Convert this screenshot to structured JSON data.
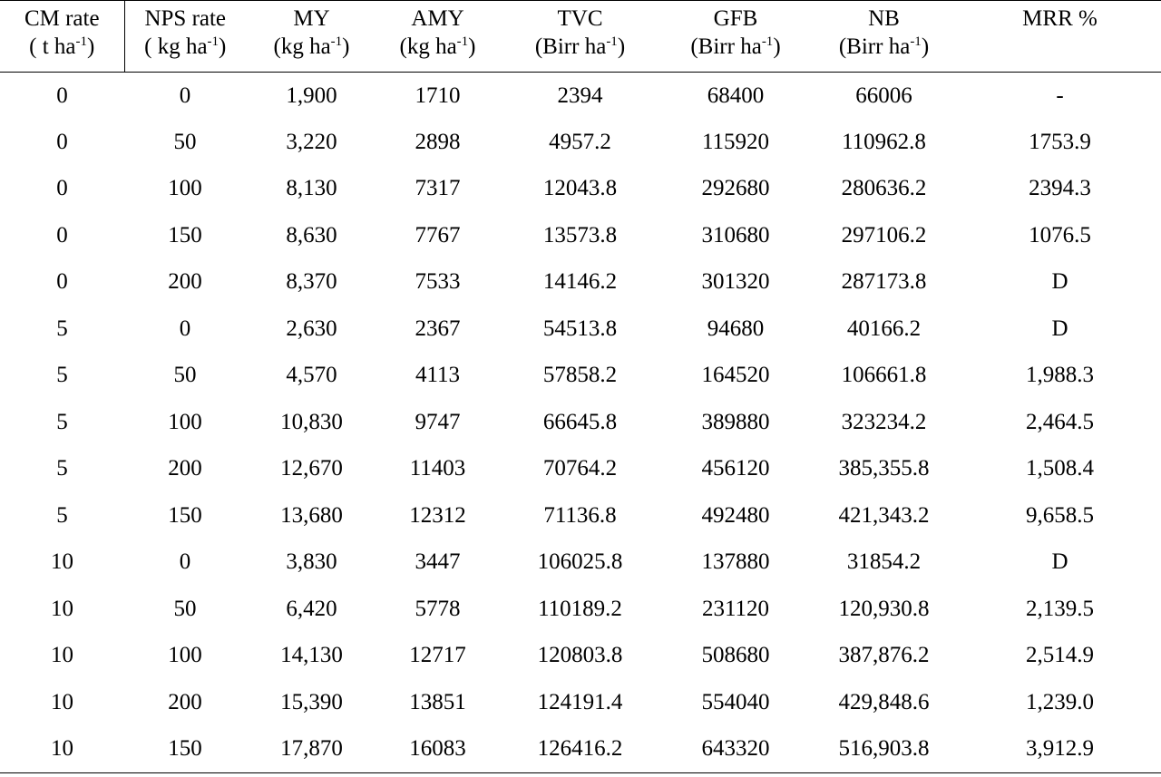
{
  "table": {
    "headers": [
      {
        "name": "CM rate",
        "unit": "( t ha",
        "exp": "-1",
        "close": ")"
      },
      {
        "name": "NPS rate",
        "unit": "( kg ha",
        "exp": "-1",
        "close": ")"
      },
      {
        "name": "MY",
        "unit": "(kg ha",
        "exp": "-1",
        "close": ")"
      },
      {
        "name": "AMY",
        "unit": "(kg ha",
        "exp": "-1",
        "close": ")"
      },
      {
        "name": "TVC",
        "unit": "(Birr ha",
        "exp": "-1",
        "close": ")"
      },
      {
        "name": "GFB",
        "unit": "(Birr ha",
        "exp": "-1",
        "close": ")"
      },
      {
        "name": "NB",
        "unit": "(Birr ha",
        "exp": "-1",
        "close": ")"
      },
      {
        "name": "MRR %",
        "unit": "",
        "exp": "",
        "close": ""
      }
    ],
    "rows": [
      [
        "0",
        "0",
        "1,900",
        "1710",
        "2394",
        "68400",
        "66006",
        "-"
      ],
      [
        "0",
        "50",
        "3,220",
        "2898",
        "4957.2",
        "115920",
        "110962.8",
        "1753.9"
      ],
      [
        "0",
        "100",
        "8,130",
        "7317",
        "12043.8",
        "292680",
        "280636.2",
        "2394.3"
      ],
      [
        "0",
        "150",
        "8,630",
        "7767",
        "13573.8",
        "310680",
        "297106.2",
        "1076.5"
      ],
      [
        "0",
        "200",
        "8,370",
        "7533",
        "14146.2",
        "301320",
        "287173.8",
        "D"
      ],
      [
        "5",
        "0",
        "2,630",
        "2367",
        "54513.8",
        "94680",
        "40166.2",
        "D"
      ],
      [
        "5",
        "50",
        "4,570",
        "4113",
        "57858.2",
        "164520",
        "106661.8",
        "1,988.3"
      ],
      [
        "5",
        "100",
        "10,830",
        "9747",
        "66645.8",
        "389880",
        "323234.2",
        "2,464.5"
      ],
      [
        "5",
        "200",
        "12,670",
        "11403",
        "70764.2",
        "456120",
        "385,355.8",
        "1,508.4"
      ],
      [
        "5",
        "150",
        "13,680",
        "12312",
        "71136.8",
        "492480",
        "421,343.2",
        "9,658.5"
      ],
      [
        "10",
        "0",
        "3,830",
        "3447",
        "106025.8",
        "137880",
        "31854.2",
        "D"
      ],
      [
        "10",
        "50",
        "6,420",
        "5778",
        "110189.2",
        "231120",
        "120,930.8",
        "2,139.5"
      ],
      [
        "10",
        "100",
        "14,130",
        "12717",
        "120803.8",
        "508680",
        "387,876.2",
        "2,514.9"
      ],
      [
        "10",
        "200",
        "15,390",
        "13851",
        "124191.4",
        "554040",
        "429,848.6",
        "1,239.0"
      ],
      [
        "10",
        "150",
        "17,870",
        "16083",
        "126416.2",
        "643320",
        "516,903.8",
        "3,912.9"
      ]
    ]
  }
}
